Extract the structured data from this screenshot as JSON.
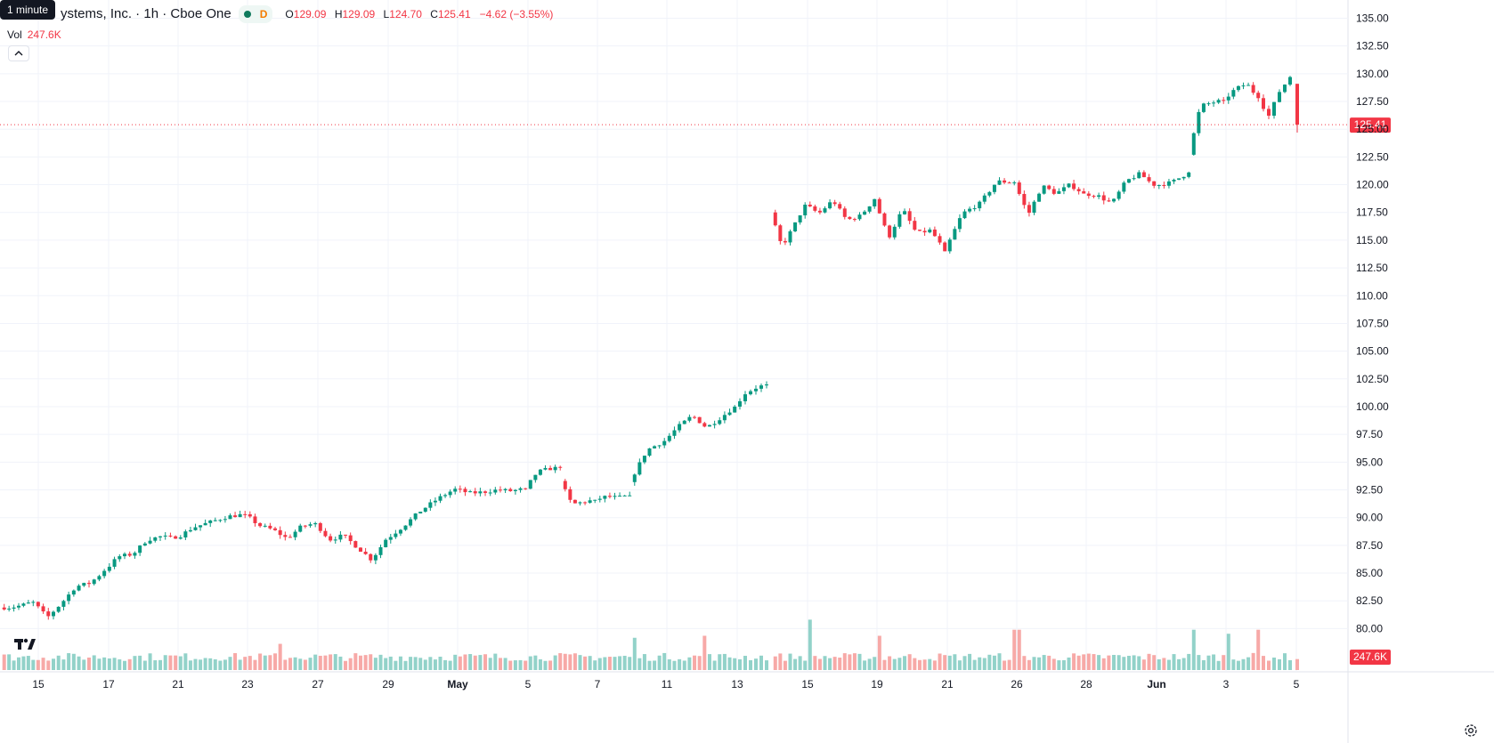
{
  "tooltip": "1 minute",
  "header": {
    "symbol_title": "ystems, Inc. · 1h · Cboe One",
    "badge": "D",
    "ohlc": {
      "o_label": "O",
      "o": "129.09",
      "h_label": "H",
      "h": "129.09",
      "l_label": "L",
      "l": "124.70",
      "c_label": "C",
      "c": "125.41",
      "change": "−4.62 (−3.55%)"
    },
    "volume_label": "Vol",
    "volume_value": "247.6K"
  },
  "colors": {
    "up": "#089981",
    "down": "#f23645",
    "vol_up": "#92d2c9",
    "vol_down": "#f7a9a7",
    "grid": "#f0f3fa",
    "axis_text": "#131722"
  },
  "icons": {
    "collapse": "chevron-up-icon",
    "logo": "tradingview-logo-icon",
    "settings": "gear-icon"
  },
  "chart_data": {
    "type": "candlestick",
    "interval": "1h",
    "y_axis": {
      "min": 78.75,
      "max": 135.6,
      "ticks": [
        "135.00",
        "132.50",
        "130.00",
        "127.50",
        "125.00",
        "122.50",
        "120.00",
        "117.50",
        "115.00",
        "112.50",
        "110.00",
        "107.50",
        "105.00",
        "102.50",
        "100.00",
        "97.50",
        "95.00",
        "92.50",
        "90.00",
        "87.50",
        "85.00",
        "82.50",
        "80.00"
      ]
    },
    "x_axis": {
      "ticks": [
        "15",
        "17",
        "21",
        "23",
        "27",
        "29",
        "May",
        "5",
        "7",
        "11",
        "13",
        "15",
        "19",
        "21",
        "26",
        "28",
        "Jun",
        "3",
        "5"
      ],
      "tick_positions": [
        43,
        122,
        200,
        278,
        357,
        436,
        514,
        593,
        671,
        749,
        828,
        907,
        985,
        1064,
        1142,
        1220,
        1299,
        1377,
        1456
      ]
    },
    "last_price": "125.41",
    "last_price_value": 125.41,
    "last_volume": "247.6K",
    "segments": [
      {
        "x0": 2,
        "x1": 40,
        "p": [
          81.9,
          81.9,
          82.1,
          82.4
        ]
      },
      {
        "x0": 40,
        "x1": 120,
        "p": [
          82.4,
          81.0,
          82.3,
          83.8,
          84.1,
          85.2
        ]
      },
      {
        "x0": 120,
        "x1": 200,
        "p": [
          85.2,
          86.5,
          86.7,
          88.0,
          88.3,
          88.1
        ]
      },
      {
        "x0": 200,
        "x1": 278,
        "p": [
          88.1,
          89.1,
          89.6,
          90.1,
          90.3
        ]
      },
      {
        "x0": 278,
        "x1": 357,
        "p": [
          90.3,
          89.3,
          88.9,
          88.1,
          89.2,
          89.5
        ]
      },
      {
        "x0": 357,
        "x1": 436,
        "p": [
          89.5,
          88.0,
          88.4,
          87.3,
          86.2,
          88.0
        ]
      },
      {
        "x0": 436,
        "x1": 514,
        "p": [
          88.0,
          89.2,
          90.6,
          91.7,
          92.6
        ]
      },
      {
        "x0": 514,
        "x1": 593,
        "p": [
          92.6,
          92.2,
          92.3,
          92.5,
          92.4,
          92.6
        ]
      },
      {
        "x0": 593,
        "x1": 632,
        "p": [
          92.6,
          94.1,
          94.4,
          94.5
        ]
      },
      {
        "x0": 632,
        "x1": 671,
        "p": [
          93.3,
          91.2,
          91.4,
          91.6
        ]
      },
      {
        "x0": 671,
        "x1": 710,
        "p": [
          91.6,
          91.9,
          91.8,
          92.0
        ]
      },
      {
        "x0": 710,
        "x1": 749,
        "p": [
          93.2,
          96.1,
          96.9
        ]
      },
      {
        "x0": 749,
        "x1": 828,
        "p": [
          96.9,
          98.2,
          99.2,
          98.1,
          99.0,
          100.0
        ]
      },
      {
        "x0": 828,
        "x1": 864,
        "p": [
          100.0,
          101.2,
          101.7,
          102.0
        ]
      },
      {
        "x0": 868,
        "x1": 907,
        "p": [
          117.5,
          114.4,
          116.2,
          118.2
        ]
      },
      {
        "x0": 907,
        "x1": 985,
        "p": [
          118.2,
          117.4,
          118.6,
          116.8,
          117.2,
          118.7
        ]
      },
      {
        "x0": 985,
        "x1": 1064,
        "p": [
          118.7,
          115.2,
          117.8,
          115.6,
          115.9,
          114.0
        ]
      },
      {
        "x0": 1064,
        "x1": 1142,
        "p": [
          114.0,
          117.4,
          118.3,
          120.3,
          120.2
        ]
      },
      {
        "x0": 1142,
        "x1": 1220,
        "p": [
          120.2,
          117.3,
          119.9,
          119.2,
          120.0,
          119.2
        ]
      },
      {
        "x0": 1220,
        "x1": 1299,
        "p": [
          119.2,
          119.0,
          118.3,
          120.3,
          121.0,
          119.9
        ]
      },
      {
        "x0": 1299,
        "x1": 1338,
        "p": [
          119.9,
          120.2,
          121.1
        ]
      },
      {
        "x0": 1338,
        "x1": 1377,
        "p": [
          122.7,
          127.1,
          127.4,
          127.6
        ]
      },
      {
        "x0": 1377,
        "x1": 1416,
        "p": [
          127.6,
          128.6,
          129.1,
          127.8
        ]
      },
      {
        "x0": 1416,
        "x1": 1452,
        "p": [
          127.8,
          126.2,
          128.4,
          129.7
        ]
      },
      {
        "x0": 1452,
        "x1": 1459,
        "p": [
          129.6,
          129.09,
          125.41
        ]
      }
    ],
    "volume_spikes": [
      {
        "x": 867,
        "ratio": 0.83,
        "up": false
      },
      {
        "x": 908,
        "ratio": 0.25,
        "up": true
      },
      {
        "x": 1339,
        "ratio": 0.2,
        "up": true
      },
      {
        "x": 1412,
        "ratio": 0.2,
        "up": false
      },
      {
        "x": 1378,
        "ratio": 0.18,
        "up": true
      },
      {
        "x": 1142,
        "ratio": 0.2,
        "up": false
      },
      {
        "x": 987,
        "ratio": 0.17,
        "up": false
      },
      {
        "x": 712,
        "ratio": 0.16,
        "up": true
      },
      {
        "x": 790,
        "ratio": 0.17,
        "up": false
      },
      {
        "x": 313,
        "ratio": 0.13,
        "up": false
      }
    ]
  }
}
